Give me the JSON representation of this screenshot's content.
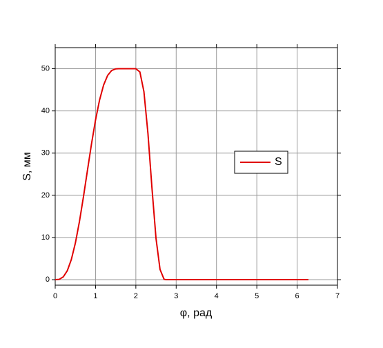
{
  "chart_data": {
    "type": "line",
    "x_label": "φ, рад",
    "y_label": "S, мм",
    "x": [
      0,
      0.1,
      0.2,
      0.3,
      0.4,
      0.5,
      0.6,
      0.7,
      0.8,
      0.9,
      1.0,
      1.1,
      1.2,
      1.3,
      1.4,
      1.5,
      1.57,
      2.0,
      2.1,
      2.2,
      2.3,
      2.4,
      2.5,
      2.6,
      2.7,
      2.75,
      6.28
    ],
    "series": [
      {
        "name": "S",
        "color": "#e00000",
        "values": [
          0,
          0.08,
          0.66,
          2.13,
          4.78,
          8.68,
          13.72,
          19.62,
          25.93,
          32.17,
          37.85,
          42.59,
          46.12,
          48.41,
          49.59,
          49.97,
          50,
          50,
          49.25,
          44.58,
          34.68,
          21.68,
          9.78,
          2.43,
          0.1,
          0,
          0
        ]
      }
    ],
    "xlim": [
      0,
      7
    ],
    "xticks": [
      0,
      1,
      2,
      3,
      4,
      5,
      6,
      7
    ],
    "ylim": [
      -1.3,
      55
    ],
    "yticks": [
      0,
      10,
      20,
      30,
      40,
      50
    ],
    "grid": true,
    "legend": "right"
  }
}
